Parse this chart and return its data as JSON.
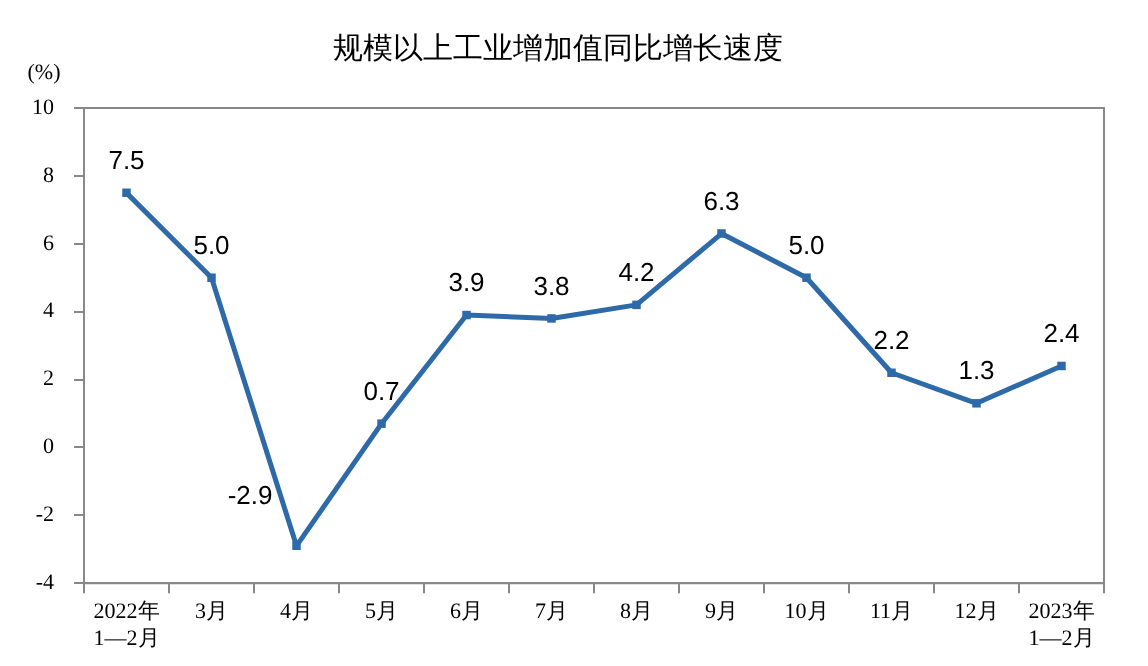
{
  "chart_data": {
    "type": "line",
    "title": "规模以上工业增加值同比增长速度",
    "ylabel": "(%)",
    "categories": [
      "2022年\n1—2月",
      "3月",
      "4月",
      "5月",
      "6月",
      "7月",
      "8月",
      "9月",
      "10月",
      "11月",
      "12月",
      "2023年\n1—2月"
    ],
    "series": [
      {
        "color": "#2e6aa8",
        "values": [
          7.5,
          5.0,
          -2.9,
          0.7,
          3.9,
          3.8,
          4.2,
          6.3,
          5.0,
          2.2,
          1.3,
          2.4
        ]
      }
    ],
    "value_labels": [
      "7.5",
      "5.0",
      "-2.9",
      "0.7",
      "3.9",
      "3.8",
      "4.2",
      "6.3",
      "5.0",
      "2.2",
      "1.3",
      "2.4"
    ],
    "ylim": [
      -4,
      10
    ],
    "yticks": [
      -4,
      -2,
      0,
      2,
      4,
      6,
      8,
      10
    ],
    "grid": false,
    "legend": false,
    "marker": "square",
    "line_style": "solid"
  }
}
